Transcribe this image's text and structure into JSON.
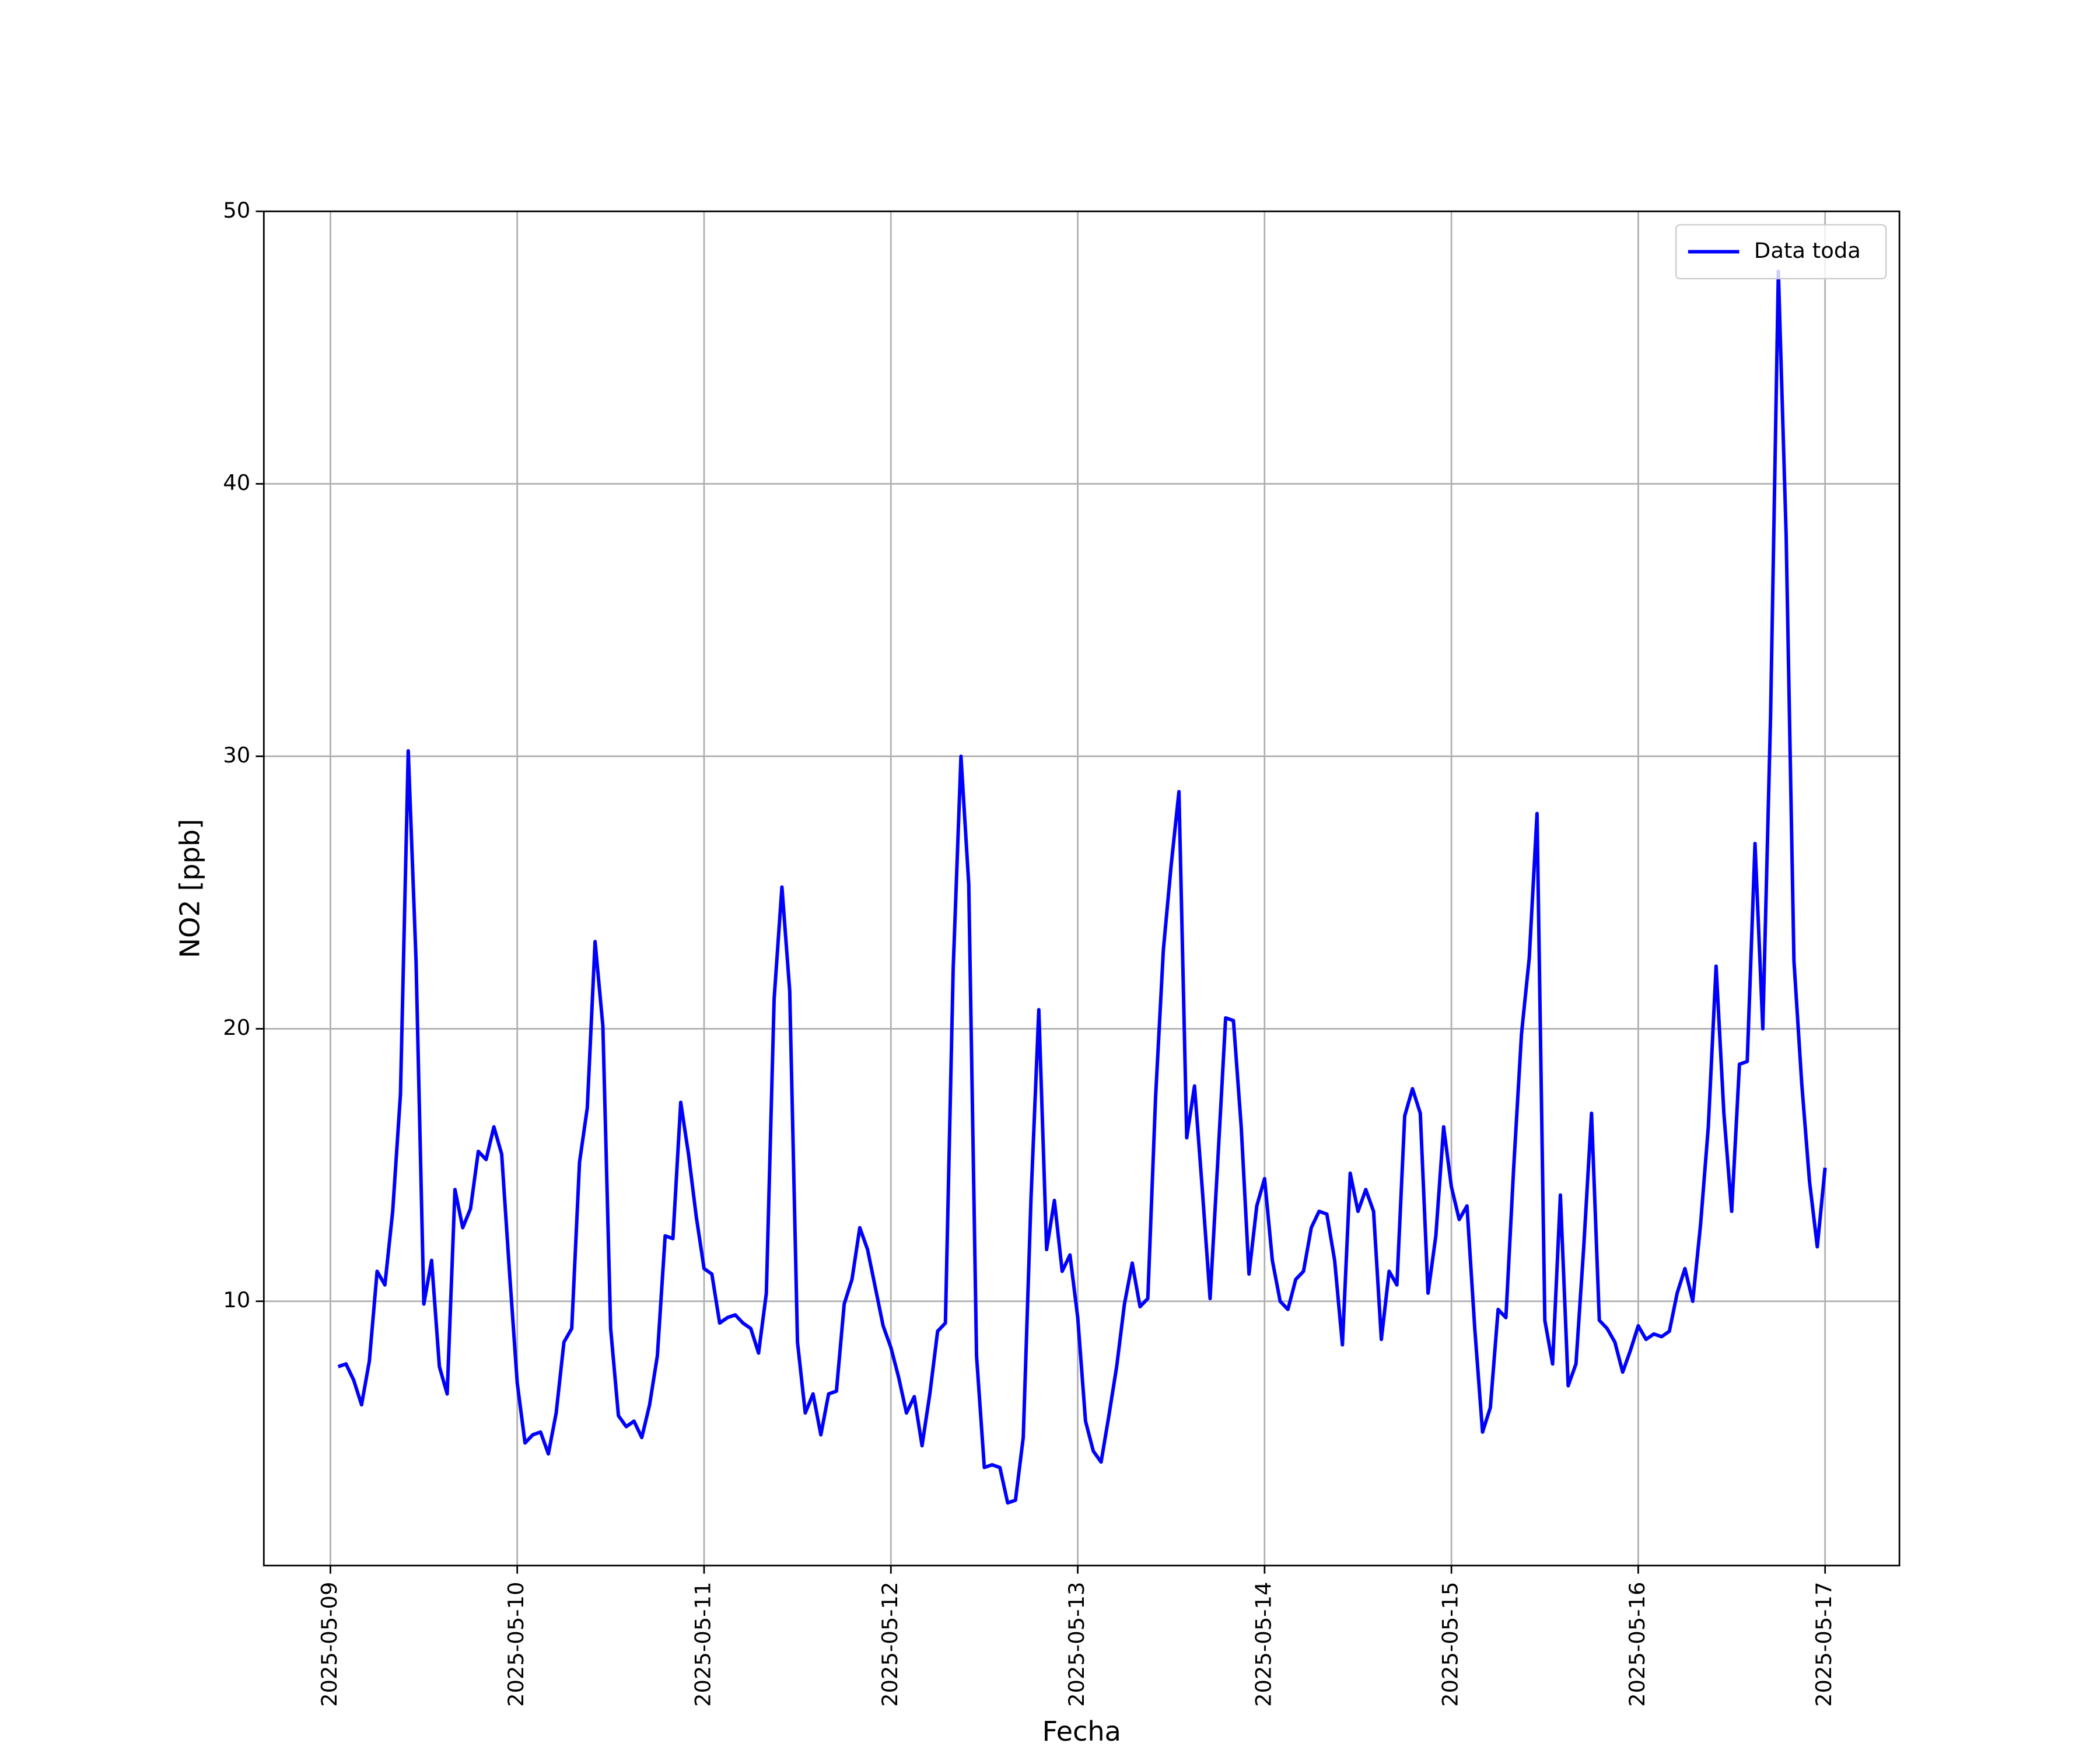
{
  "chart_data": {
    "type": "line",
    "xlabel": "Fecha",
    "ylabel": "NO2 [ppb]",
    "x": [
      "2025-05-09 01:00",
      "2025-05-09 02:00",
      "2025-05-09 03:00",
      "2025-05-09 04:00",
      "2025-05-09 05:00",
      "2025-05-09 06:00",
      "2025-05-09 07:00",
      "2025-05-09 08:00",
      "2025-05-09 09:00",
      "2025-05-09 10:00",
      "2025-05-09 11:00",
      "2025-05-09 12:00",
      "2025-05-09 13:00",
      "2025-05-09 14:00",
      "2025-05-09 15:00",
      "2025-05-09 16:00",
      "2025-05-09 17:00",
      "2025-05-09 18:00",
      "2025-05-09 19:00",
      "2025-05-09 20:00",
      "2025-05-09 21:00",
      "2025-05-09 22:00",
      "2025-05-09 23:00",
      "2025-05-10 00:00",
      "2025-05-10 01:00",
      "2025-05-10 02:00",
      "2025-05-10 03:00",
      "2025-05-10 04:00",
      "2025-05-10 05:00",
      "2025-05-10 06:00",
      "2025-05-10 07:00",
      "2025-05-10 08:00",
      "2025-05-10 09:00",
      "2025-05-10 10:00",
      "2025-05-10 11:00",
      "2025-05-10 12:00",
      "2025-05-10 13:00",
      "2025-05-10 14:00",
      "2025-05-10 15:00",
      "2025-05-10 16:00",
      "2025-05-10 17:00",
      "2025-05-10 18:00",
      "2025-05-10 19:00",
      "2025-05-10 20:00",
      "2025-05-10 21:00",
      "2025-05-10 22:00",
      "2025-05-10 23:00",
      "2025-05-11 00:00",
      "2025-05-11 01:00",
      "2025-05-11 02:00",
      "2025-05-11 03:00",
      "2025-05-11 04:00",
      "2025-05-11 05:00",
      "2025-05-11 06:00",
      "2025-05-11 07:00",
      "2025-05-11 08:00",
      "2025-05-11 09:00",
      "2025-05-11 10:00",
      "2025-05-11 11:00",
      "2025-05-11 12:00",
      "2025-05-11 13:00",
      "2025-05-11 14:00",
      "2025-05-11 15:00",
      "2025-05-11 16:00",
      "2025-05-11 17:00",
      "2025-05-11 18:00",
      "2025-05-11 19:00",
      "2025-05-11 20:00",
      "2025-05-11 21:00",
      "2025-05-11 22:00",
      "2025-05-11 23:00",
      "2025-05-12 00:00",
      "2025-05-12 01:00",
      "2025-05-12 02:00",
      "2025-05-12 03:00",
      "2025-05-12 04:00",
      "2025-05-12 05:00",
      "2025-05-12 06:00",
      "2025-05-12 07:00",
      "2025-05-12 08:00",
      "2025-05-12 09:00",
      "2025-05-12 10:00",
      "2025-05-12 11:00",
      "2025-05-12 12:00",
      "2025-05-12 13:00",
      "2025-05-12 14:00",
      "2025-05-12 15:00",
      "2025-05-12 16:00",
      "2025-05-12 17:00",
      "2025-05-12 18:00",
      "2025-05-12 19:00",
      "2025-05-12 20:00",
      "2025-05-12 21:00",
      "2025-05-12 22:00",
      "2025-05-12 23:00",
      "2025-05-13 00:00",
      "2025-05-13 01:00",
      "2025-05-13 02:00",
      "2025-05-13 03:00",
      "2025-05-13 04:00",
      "2025-05-13 05:00",
      "2025-05-13 06:00",
      "2025-05-13 07:00",
      "2025-05-13 08:00",
      "2025-05-13 09:00",
      "2025-05-13 10:00",
      "2025-05-13 11:00",
      "2025-05-13 12:00",
      "2025-05-13 13:00",
      "2025-05-13 14:00",
      "2025-05-13 15:00",
      "2025-05-13 16:00",
      "2025-05-13 17:00",
      "2025-05-13 18:00",
      "2025-05-13 19:00",
      "2025-05-13 20:00",
      "2025-05-13 21:00",
      "2025-05-13 22:00",
      "2025-05-13 23:00",
      "2025-05-14 00:00",
      "2025-05-14 01:00",
      "2025-05-14 02:00",
      "2025-05-14 03:00",
      "2025-05-14 04:00",
      "2025-05-14 05:00",
      "2025-05-14 06:00",
      "2025-05-14 07:00",
      "2025-05-14 08:00",
      "2025-05-14 09:00",
      "2025-05-14 10:00",
      "2025-05-14 11:00",
      "2025-05-14 12:00",
      "2025-05-14 13:00",
      "2025-05-14 14:00",
      "2025-05-14 15:00",
      "2025-05-14 16:00",
      "2025-05-14 17:00",
      "2025-05-14 18:00",
      "2025-05-14 19:00",
      "2025-05-14 20:00",
      "2025-05-14 21:00",
      "2025-05-14 22:00",
      "2025-05-14 23:00",
      "2025-05-15 00:00",
      "2025-05-15 01:00",
      "2025-05-15 02:00",
      "2025-05-15 03:00",
      "2025-05-15 04:00",
      "2025-05-15 05:00",
      "2025-05-15 06:00",
      "2025-05-15 07:00",
      "2025-05-15 08:00",
      "2025-05-15 09:00",
      "2025-05-15 10:00",
      "2025-05-15 11:00",
      "2025-05-15 12:00",
      "2025-05-15 13:00",
      "2025-05-15 14:00",
      "2025-05-15 15:00",
      "2025-05-15 16:00",
      "2025-05-15 17:00",
      "2025-05-15 18:00",
      "2025-05-15 19:00",
      "2025-05-15 20:00",
      "2025-05-15 21:00",
      "2025-05-15 22:00",
      "2025-05-15 23:00",
      "2025-05-16 00:00",
      "2025-05-16 01:00",
      "2025-05-16 02:00",
      "2025-05-16 03:00",
      "2025-05-16 04:00",
      "2025-05-16 05:00",
      "2025-05-16 06:00",
      "2025-05-16 07:00",
      "2025-05-16 08:00",
      "2025-05-16 09:00",
      "2025-05-16 10:00",
      "2025-05-16 11:00",
      "2025-05-16 12:00",
      "2025-05-16 13:00",
      "2025-05-16 14:00",
      "2025-05-16 15:00",
      "2025-05-16 16:00",
      "2025-05-16 17:00",
      "2025-05-16 18:00",
      "2025-05-16 19:00",
      "2025-05-16 20:00",
      "2025-05-16 21:00",
      "2025-05-16 22:00",
      "2025-05-16 23:00",
      "2025-05-17 00:00"
    ],
    "series": [
      {
        "name": "Data toda",
        "color": "#0000ff",
        "values": [
          7.6,
          7.7,
          7.1,
          6.2,
          7.8,
          11.1,
          10.6,
          13.3,
          17.6,
          30.2,
          22.5,
          9.9,
          11.5,
          7.6,
          6.6,
          14.1,
          12.7,
          13.4,
          15.5,
          15.2,
          16.4,
          15.4,
          11.1,
          7.0,
          4.8,
          5.1,
          5.2,
          4.4,
          5.9,
          8.5,
          9.0,
          15.1,
          17.1,
          23.2,
          20.1,
          9.0,
          5.8,
          5.4,
          5.6,
          5.0,
          6.2,
          8.0,
          12.4,
          12.3,
          17.3,
          15.4,
          13.1,
          11.2,
          11.0,
          9.2,
          9.4,
          9.5,
          9.2,
          9.0,
          8.1,
          10.3,
          21.1,
          25.2,
          21.4,
          8.5,
          5.9,
          6.6,
          5.1,
          6.6,
          6.7,
          9.9,
          10.8,
          12.7,
          11.9,
          10.5,
          9.1,
          8.3,
          7.2,
          5.9,
          6.5,
          4.7,
          6.6,
          8.9,
          9.2,
          22.2,
          30.0,
          25.3,
          8.0,
          3.9,
          4.0,
          3.9,
          2.6,
          2.7,
          5.0,
          13.8,
          20.7,
          11.9,
          13.7,
          11.1,
          11.7,
          9.4,
          5.6,
          4.5,
          4.1,
          5.8,
          7.6,
          9.9,
          11.4,
          9.8,
          10.1,
          17.5,
          22.9,
          26.0,
          28.7,
          16.0,
          17.9,
          14.1,
          10.1,
          15.2,
          20.4,
          20.3,
          16.4,
          11.0,
          13.5,
          14.5,
          11.5,
          10.0,
          9.7,
          10.8,
          11.1,
          12.7,
          13.3,
          13.2,
          11.5,
          8.4,
          14.7,
          13.3,
          14.1,
          13.3,
          8.6,
          11.1,
          10.6,
          16.8,
          17.8,
          16.9,
          10.3,
          12.4,
          16.4,
          14.2,
          13.0,
          13.5,
          9.0,
          5.2,
          6.1,
          9.7,
          9.4,
          14.9,
          19.8,
          22.6,
          27.9,
          9.3,
          7.7,
          13.9,
          6.9,
          7.7,
          12.0,
          16.9,
          9.3,
          9.0,
          8.5,
          7.4,
          8.2,
          9.1,
          8.6,
          8.8,
          8.7,
          8.9,
          10.3,
          11.2,
          10.0,
          12.8,
          16.4,
          22.3,
          16.9,
          13.3,
          18.7,
          18.8,
          26.8,
          20.0,
          31.5,
          47.8,
          38.1,
          22.5,
          18.0,
          14.4,
          12.0,
          14.9
        ]
      }
    ],
    "xlim": [
      "2025-05-08 15:27",
      "2025-05-17 09:33"
    ],
    "xticks": [
      "2025-05-09",
      "2025-05-10",
      "2025-05-11",
      "2025-05-12",
      "2025-05-13",
      "2025-05-14",
      "2025-05-15",
      "2025-05-16",
      "2025-05-17"
    ],
    "ylim": [
      0.3,
      50
    ],
    "yticks": [
      10,
      20,
      30,
      40,
      50
    ],
    "grid": true,
    "legend": "upper right"
  }
}
